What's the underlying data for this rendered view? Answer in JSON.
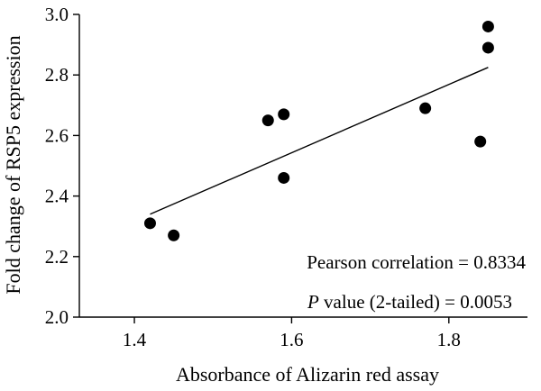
{
  "chart_data": {
    "type": "scatter",
    "xlabel": "Absorbance of Alizarin red assay",
    "ylabel": "Fold change of RSP5 expression",
    "xlim": [
      1.33,
      1.9
    ],
    "ylim": [
      2.0,
      3.0
    ],
    "xticks": [
      1.4,
      1.6,
      1.8
    ],
    "yticks": [
      2.0,
      2.2,
      2.4,
      2.6,
      2.8,
      3.0
    ],
    "xtick_labels": [
      "1.4",
      "1.6",
      "1.8"
    ],
    "ytick_labels": [
      "2.0",
      "2.2",
      "2.4",
      "2.6",
      "2.8",
      "3.0"
    ],
    "grid": false,
    "points": [
      {
        "x": 1.42,
        "y": 2.31
      },
      {
        "x": 1.45,
        "y": 2.27
      },
      {
        "x": 1.57,
        "y": 2.65
      },
      {
        "x": 1.59,
        "y": 2.67
      },
      {
        "x": 1.59,
        "y": 2.46
      },
      {
        "x": 1.77,
        "y": 2.69
      },
      {
        "x": 1.84,
        "y": 2.58
      },
      {
        "x": 1.85,
        "y": 2.96
      },
      {
        "x": 1.85,
        "y": 2.89
      }
    ],
    "trendline": {
      "x": [
        1.42,
        1.85
      ],
      "y": [
        2.34,
        2.825
      ]
    },
    "annotations": {
      "pearson": "Pearson correlation = 0.8334",
      "p_italic": "P",
      "p_rest": " value (2-tailed) = 0.0053"
    },
    "colors": {
      "points": "#000000",
      "line": "#000000",
      "axis": "#000000"
    }
  }
}
